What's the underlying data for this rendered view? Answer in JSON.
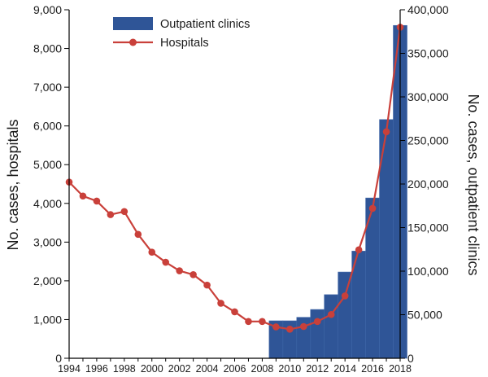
{
  "chart_data": {
    "type": "bar+line",
    "x": [
      1994,
      1995,
      1996,
      1997,
      1998,
      1999,
      2000,
      2001,
      2002,
      2003,
      2004,
      2005,
      2006,
      2007,
      2008,
      2009,
      2010,
      2011,
      2012,
      2013,
      2014,
      2015,
      2016,
      2017,
      2018
    ],
    "series": [
      {
        "name": "Outpatient clinics",
        "type": "bar",
        "axis": "right",
        "color": "#2f5597",
        "values": [
          null,
          null,
          null,
          null,
          null,
          null,
          null,
          null,
          null,
          null,
          null,
          null,
          null,
          null,
          null,
          43000,
          43000,
          47000,
          56000,
          73000,
          99000,
          123000,
          184000,
          274000,
          382000
        ]
      },
      {
        "name": "Hospitals",
        "type": "line",
        "axis": "left",
        "color": "#c9403a",
        "values": [
          4550,
          4190,
          4060,
          3710,
          3790,
          3200,
          2740,
          2480,
          2260,
          2160,
          1890,
          1420,
          1200,
          950,
          950,
          810,
          750,
          820,
          950,
          1130,
          1610,
          2800,
          3870,
          5850,
          8550
        ]
      }
    ],
    "xlabel": "",
    "ylabel": "No. cases, hospitals",
    "y2label": "No. cases, outpatient clinics",
    "ylim": [
      0,
      9000
    ],
    "y2lim": [
      0,
      400000
    ],
    "yticks": [
      "0",
      "1,000",
      "2,000",
      "3,000",
      "4,000",
      "5,000",
      "6,000",
      "7,000",
      "8,000",
      "9,000"
    ],
    "y2ticks": [
      "0",
      "50,000",
      "100,000",
      "150,000",
      "200,000",
      "250,000",
      "300,000",
      "350,000",
      "400,000"
    ],
    "xticks": [
      "1994",
      "1996",
      "1998",
      "2000",
      "2002",
      "2004",
      "2006",
      "2008",
      "2010",
      "2012",
      "2014",
      "2016",
      "2018"
    ],
    "legend": [
      "Outpatient clinics",
      "Hospitals"
    ],
    "legend_position": "top-left",
    "grid": false
  }
}
